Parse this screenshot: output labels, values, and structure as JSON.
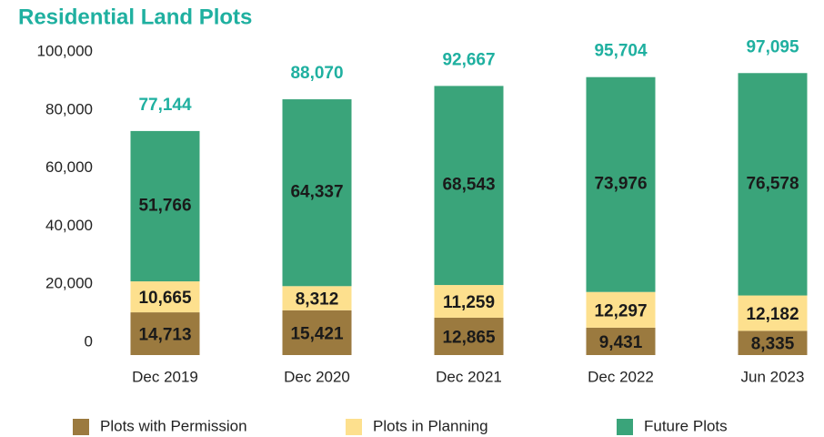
{
  "chart_data": {
    "type": "stacked_bar",
    "title": "Residential Land Plots",
    "categories": [
      "Dec 2019",
      "Dec 2020",
      "Dec 2021",
      "Dec 2022",
      "Jun 2023"
    ],
    "series": [
      {
        "name": "Plots with Permission",
        "color": "#9b7a3f",
        "values": [
          14713,
          15421,
          12865,
          9431,
          8335
        ],
        "value_labels": [
          "14,713",
          "15,421",
          "12,865",
          "9,431",
          "8,335"
        ]
      },
      {
        "name": "Plots in Planning",
        "color": "#fde08e",
        "values": [
          10665,
          8312,
          11259,
          12297,
          12182
        ],
        "value_labels": [
          "10,665",
          "8,312",
          "11,259",
          "12,297",
          "12,182"
        ]
      },
      {
        "name": "Future Plots",
        "color": "#3aa47a",
        "values": [
          51766,
          64337,
          68543,
          73976,
          76578
        ],
        "value_labels": [
          "51,766",
          "64,337",
          "68,543",
          "73,976",
          "76,578"
        ]
      }
    ],
    "totals": [
      77144,
      88070,
      92667,
      95704,
      97095
    ],
    "total_labels": [
      "77,144",
      "88,070",
      "92,667",
      "95,704",
      "97,095"
    ],
    "total_color": "#1fb0a0",
    "ylim": [
      0,
      100000
    ],
    "yticks": [
      0,
      {
        "value": 20000,
        "label": "20,000"
      },
      {
        "value": 40000,
        "label": "40,000"
      },
      {
        "value": 60000,
        "label": "60,000"
      },
      {
        "value": 80000,
        "label": "80,000"
      },
      {
        "value": 100000,
        "label": "100,000"
      }
    ],
    "grid": false
  }
}
